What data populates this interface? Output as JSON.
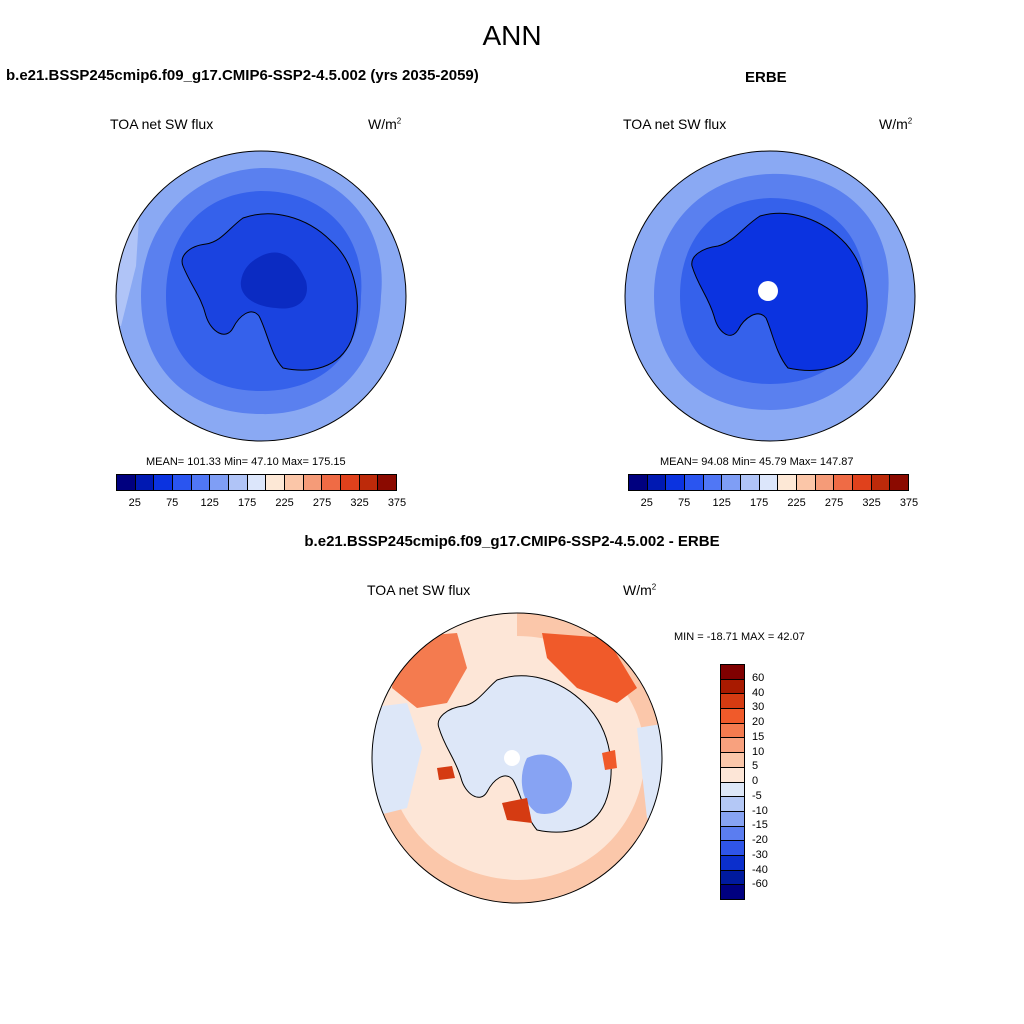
{
  "title": "ANN",
  "panels": {
    "model": {
      "title": "b.e21.BSSP245cmip6.f09_g17.CMIP6-SSP2-4.5.002 (yrs 2035-2059)",
      "variable": "TOA net SW flux",
      "unit": "W/m",
      "unit_sup": "2",
      "stats": "MEAN= 101.33  Min=  47.10  Max= 175.15",
      "colorbar_labels": [
        "25",
        "75",
        "125",
        "175",
        "225",
        "275",
        "325",
        "375"
      ]
    },
    "obs": {
      "title": "ERBE",
      "variable": "TOA net SW flux",
      "unit": "W/m",
      "unit_sup": "2",
      "stats": "MEAN=  94.08  Min=  45.79  Max= 147.87",
      "colorbar_labels": [
        "25",
        "75",
        "125",
        "175",
        "225",
        "275",
        "325",
        "375"
      ]
    },
    "diff": {
      "title": "b.e21.BSSP245cmip6.f09_g17.CMIP6-SSP2-4.5.002 - ERBE",
      "variable": "TOA net SW flux",
      "unit": "W/m",
      "unit_sup": "2",
      "stats": "MIN = -18.71 MAX =  42.07",
      "colorbar_labels": [
        "60",
        "40",
        "30",
        "20",
        "15",
        "10",
        "5",
        "0",
        "-5",
        "-10",
        "-15",
        "-20",
        "-30",
        "-40",
        "-60"
      ]
    }
  },
  "colors": {
    "abs_scale": [
      "#00007f",
      "#0019b2",
      "#0b33e0",
      "#2a55f0",
      "#5077f5",
      "#7f9ef5",
      "#b0c4f7",
      "#dce6fb",
      "#fde8d6",
      "#fbc6a8",
      "#f59b78",
      "#ef6b45",
      "#e0411c",
      "#bd2a0a",
      "#8b0a00"
    ],
    "diff_scale": [
      "#7f0000",
      "#a81a00",
      "#d53b12",
      "#f05a2a",
      "#f47b4f",
      "#f8a17e",
      "#fbc7aa",
      "#fde6d7",
      "#dde7f8",
      "#b4c8f6",
      "#87a3f3",
      "#5b7df0",
      "#2f55e8",
      "#0b2fcc",
      "#001a9e",
      "#000080"
    ],
    "ocean_outer": "#8aa9f3",
    "ocean_mid": "#5a80ef",
    "ocean_inner": "#3561eb",
    "continent": "#1a43e0",
    "continent_core": "#0b2bc2"
  }
}
